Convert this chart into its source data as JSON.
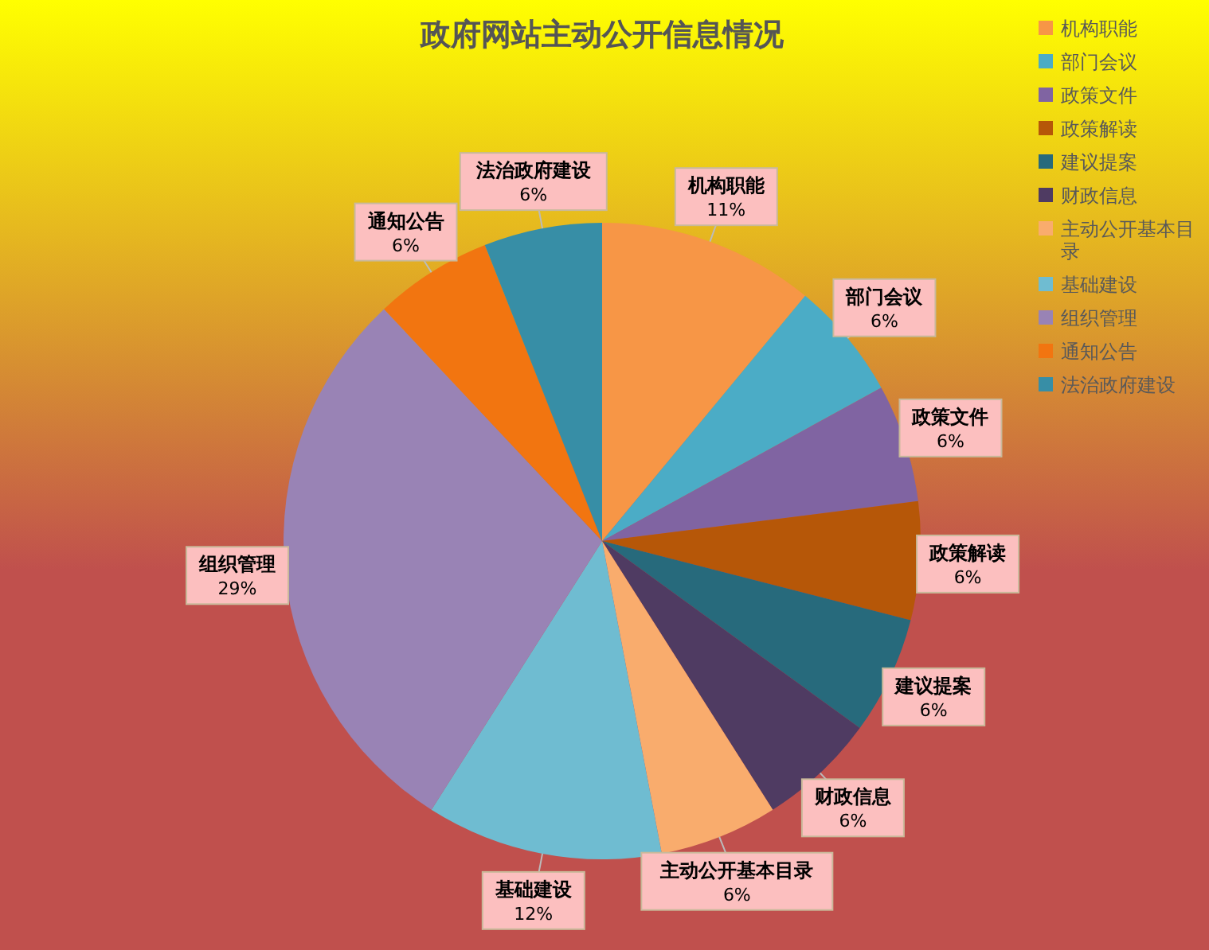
{
  "chart_data": {
    "type": "pie",
    "title": "政府网站主动公开信息情况",
    "categories": [
      "机构职能",
      "部门会议",
      "政策文件",
      "政策解读",
      "建议提案",
      "财政信息",
      "主动公开基本目录",
      "基础建设",
      "组织管理",
      "通知公告",
      "法治政府建设"
    ],
    "values": [
      11,
      6,
      6,
      6,
      6,
      6,
      6,
      12,
      29,
      6,
      6
    ],
    "value_labels": [
      "11%",
      "6%",
      "6%",
      "6%",
      "6%",
      "6%",
      "6%",
      "12%",
      "29%",
      "6%",
      "6%"
    ],
    "colors": [
      "#f79646",
      "#4bacc6",
      "#8064a2",
      "#b65708",
      "#276a7c",
      "#4f3b62",
      "#f9ac6d",
      "#6fbcd1",
      "#9983b5",
      "#f27510",
      "#378ea6"
    ],
    "legend": "right"
  }
}
